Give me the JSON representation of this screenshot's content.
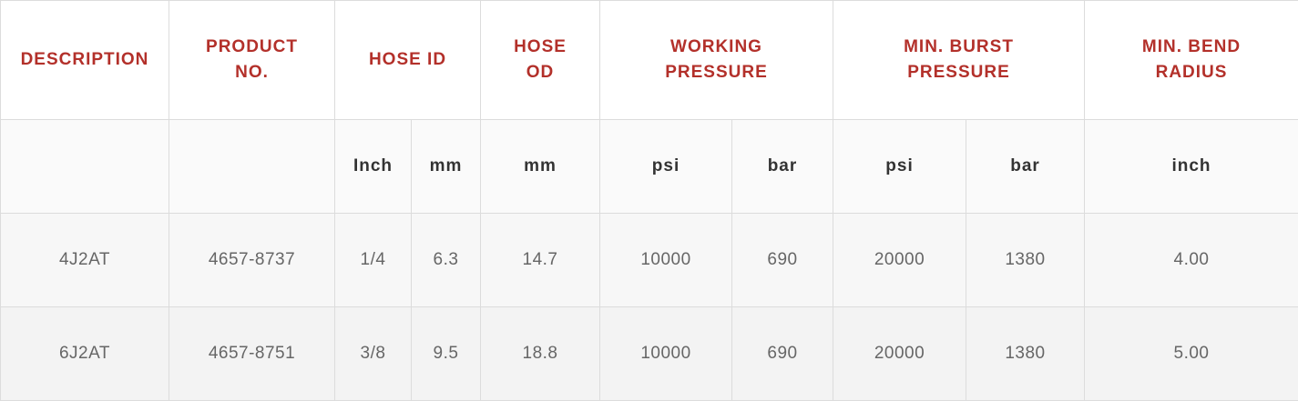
{
  "headers": {
    "description": "DESCRIPTION",
    "product_no_line1": "PRODUCT",
    "product_no_line2": "NO.",
    "hose_id": "HOSE ID",
    "hose_od_line1": "HOSE",
    "hose_od_line2": "OD",
    "working_pressure_line1": "WORKING",
    "working_pressure_line2": "PRESSURE",
    "min_burst_line1": "MIN. BURST",
    "min_burst_line2": "PRESSURE",
    "min_bend_line1": "MIN. BEND",
    "min_bend_line2": "RADIUS"
  },
  "units": {
    "hose_id_inch": "Inch",
    "hose_id_mm": "mm",
    "hose_od_mm": "mm",
    "working_psi": "psi",
    "working_bar": "bar",
    "burst_psi": "psi",
    "burst_bar": "bar",
    "bend_inch": "inch"
  },
  "rows": [
    {
      "description": "4J2AT",
      "product_no": "4657-8737",
      "hose_id_inch": "1/4",
      "hose_id_mm": "6.3",
      "hose_od_mm": "14.7",
      "working_psi": "10000",
      "working_bar": "690",
      "burst_psi": "20000",
      "burst_bar": "1380",
      "bend_inch": "4.00"
    },
    {
      "description": "6J2AT",
      "product_no": "4657-8751",
      "hose_id_inch": "3/8",
      "hose_id_mm": "9.5",
      "hose_od_mm": "18.8",
      "working_psi": "10000",
      "working_bar": "690",
      "burst_psi": "20000",
      "burst_bar": "1380",
      "bend_inch": "5.00"
    }
  ],
  "colors": {
    "header_text": "#b3302a",
    "unit_text": "#333333",
    "cell_text": "#666666",
    "border": "#dcdcdc"
  }
}
